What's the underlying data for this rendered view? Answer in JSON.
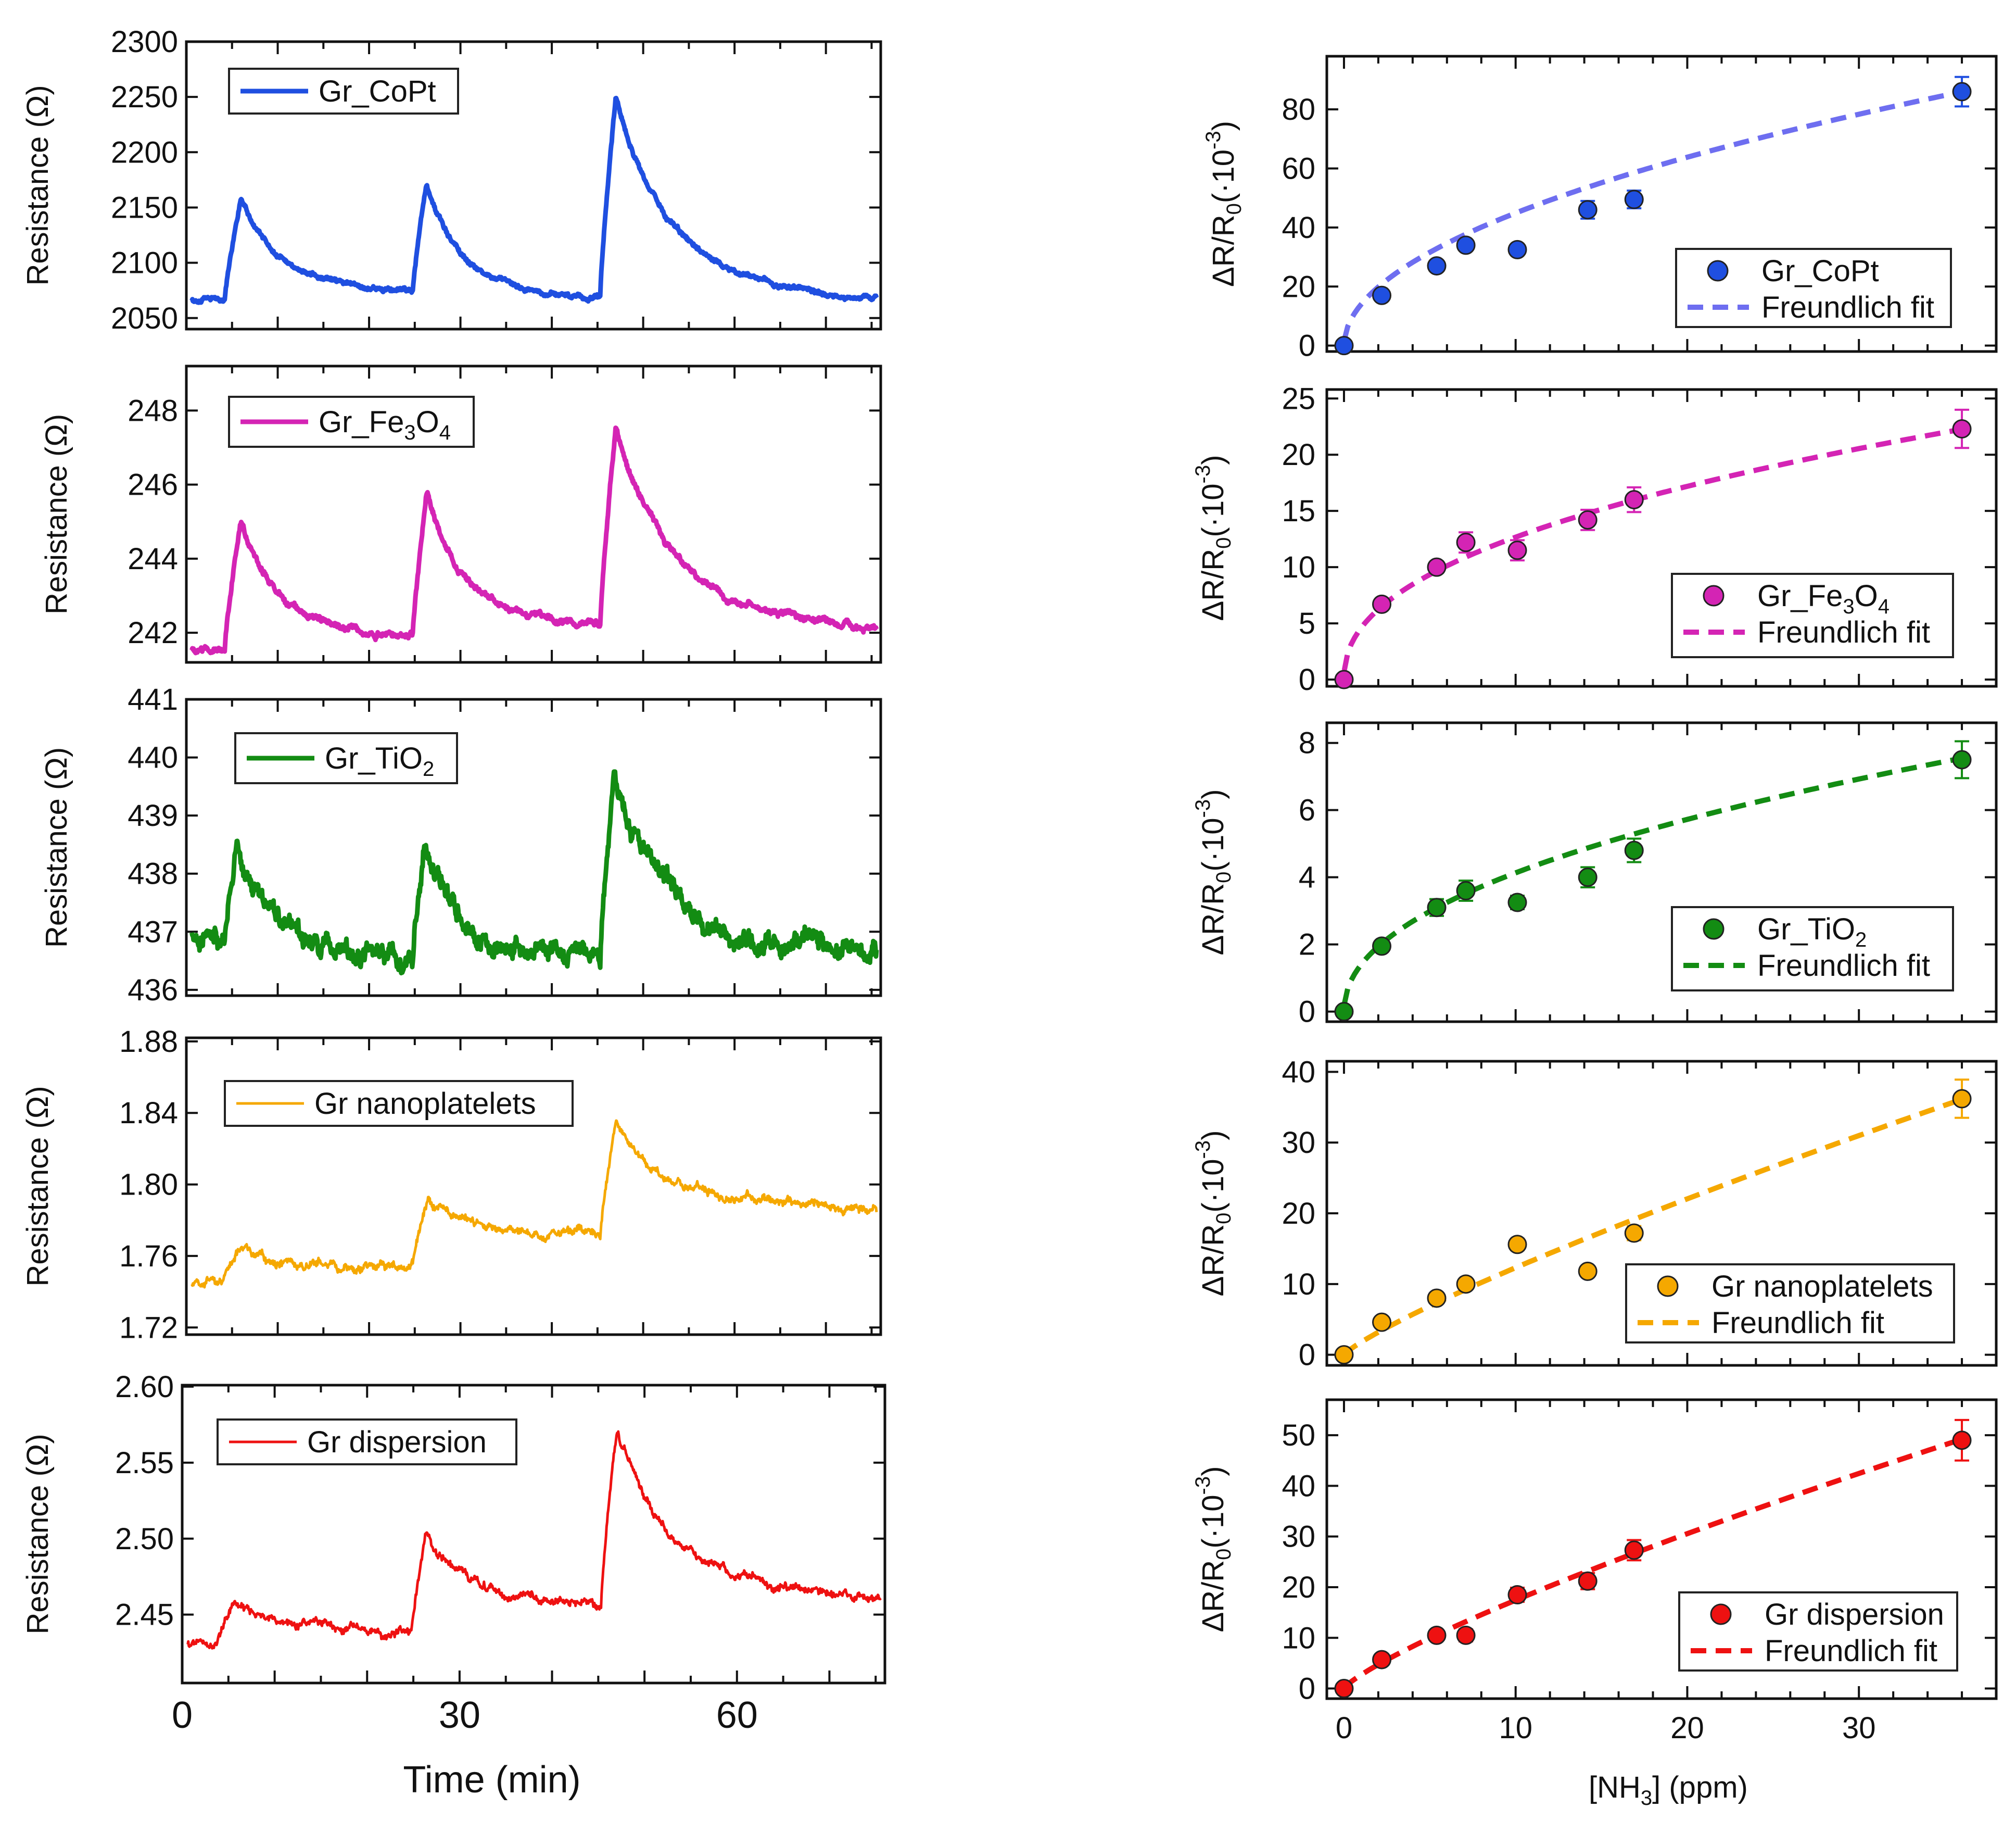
{
  "chart_data": [
    {
      "id": "left-copt",
      "type": "line",
      "label": "Gr_CoPt",
      "color": "#1f4fe0",
      "ylabel": "Resistance (Ω)",
      "xlim": [
        0,
        76
      ],
      "ylim": [
        2040,
        2300
      ],
      "yticks": [
        2050,
        2100,
        2150,
        2200,
        2250,
        2300
      ],
      "ytick_labels": [
        "2050",
        "2100",
        "2150",
        "2200",
        "2250",
        "2300"
      ],
      "baseline": 2067,
      "events": [
        {
          "start": 4.2,
          "peak_t": 6.0,
          "peak": 2160,
          "end_val": 2074,
          "next": 24.8
        },
        {
          "start": 24.8,
          "peak_t": 26.3,
          "peak": 2172,
          "end_val": 2066,
          "next": 45.3
        },
        {
          "start": 45.3,
          "peak_t": 47.0,
          "peak": 2250,
          "end_val": 2066,
          "next": 75.6
        }
      ],
      "noise": 1.5,
      "thick": true
    },
    {
      "id": "left-fe3o4",
      "type": "line",
      "label": "Gr_Fe3O4",
      "label_parts": [
        "Gr_Fe",
        "3",
        "O",
        "4"
      ],
      "color": "#d424b4",
      "ylabel": "Resistance (Ω)",
      "xlim": [
        0,
        76
      ],
      "ylim": [
        241.2,
        249.2
      ],
      "yticks": [
        242,
        244,
        246,
        248
      ],
      "ytick_labels": [
        "242",
        "244",
        "246",
        "248"
      ],
      "baseline": 241.6,
      "events": [
        {
          "start": 4.2,
          "peak_t": 6.0,
          "peak": 245.0,
          "end_val": 241.9,
          "next": 24.8
        },
        {
          "start": 24.8,
          "peak_t": 26.3,
          "peak": 245.8,
          "end_val": 242.2,
          "next": 45.3
        },
        {
          "start": 45.3,
          "peak_t": 47.0,
          "peak": 247.6,
          "end_val": 242.1,
          "next": 75.6
        }
      ],
      "noise": 0.06,
      "thick": true
    },
    {
      "id": "left-tio2",
      "type": "line",
      "label": "Gr_TiO2",
      "label_parts": [
        "Gr_TiO",
        "2"
      ],
      "color": "#138c13",
      "ylabel": "Resistance (Ω)",
      "xlim": [
        0,
        76
      ],
      "ylim": [
        435.9,
        441.0
      ],
      "yticks": [
        436,
        437,
        438,
        439,
        440,
        441
      ],
      "ytick_labels": [
        "436",
        "437",
        "438",
        "439",
        "440",
        "441"
      ],
      "baseline": 437.0,
      "events": [
        {
          "start": 4.2,
          "peak_t": 5.6,
          "peak": 438.4,
          "end_val": 436.5,
          "next": 24.8
        },
        {
          "start": 24.8,
          "peak_t": 26.0,
          "peak": 438.4,
          "end_val": 436.6,
          "next": 45.3
        },
        {
          "start": 45.3,
          "peak_t": 46.8,
          "peak": 439.7,
          "end_val": 436.6,
          "next": 75.6
        }
      ],
      "noise": 0.12,
      "thick": true
    },
    {
      "id": "left-nanoplatelets",
      "type": "line",
      "label": "Gr nanoplatelets",
      "color": "#f5a800",
      "ylabel": "Resistance (Ω)",
      "xlim": [
        0,
        76
      ],
      "ylim": [
        1.716,
        1.882
      ],
      "yticks": [
        1.72,
        1.76,
        1.8,
        1.84,
        1.88
      ],
      "ytick_labels": [
        "1.72",
        "1.76",
        "1.80",
        "1.84",
        "1.88"
      ],
      "baseline": 1.745,
      "events": [
        {
          "start": 4.2,
          "peak_t": 6.0,
          "peak": 1.764,
          "end_val": 1.754,
          "next": 24.8
        },
        {
          "start": 24.8,
          "peak_t": 26.5,
          "peak": 1.792,
          "end_val": 1.772,
          "next": 45.3
        },
        {
          "start": 45.3,
          "peak_t": 47.0,
          "peak": 1.833,
          "end_val": 1.786,
          "next": 75.6
        }
      ],
      "noise": 0.0018,
      "thick": false
    },
    {
      "id": "left-dispersion",
      "type": "line",
      "label": "Gr dispersion",
      "color": "#ee1111",
      "ylabel": "Resistance (Ω)",
      "xlim": [
        0,
        76
      ],
      "ylim": [
        2.405,
        2.601
      ],
      "yticks": [
        2.45,
        2.5,
        2.55,
        2.6
      ],
      "ytick_labels": [
        "2.45",
        "2.50",
        "2.55",
        "2.60"
      ],
      "baseline": 2.432,
      "events": [
        {
          "start": 3.8,
          "peak_t": 5.6,
          "peak": 2.457,
          "end_val": 2.44,
          "next": 24.8
        },
        {
          "start": 24.8,
          "peak_t": 26.4,
          "peak": 2.505,
          "end_val": 2.457,
          "next": 45.3
        },
        {
          "start": 45.3,
          "peak_t": 47.0,
          "peak": 2.571,
          "end_val": 2.461,
          "next": 75.6
        }
      ],
      "noise": 0.002,
      "thick": false,
      "xticks": [
        0,
        30,
        60
      ],
      "xtick_labels": [
        "0",
        "30",
        "60"
      ],
      "xlabel": "Time (min)"
    },
    {
      "id": "right-copt",
      "type": "scatter",
      "label": "Gr_CoPt",
      "color": "#1f4fe0",
      "fit_color": "#6e6ef0",
      "fit_label": "Freundlich fit",
      "ylabel": "ΔR/R0(·10-3)",
      "xlim": [
        -1,
        38
      ],
      "ylim": [
        -2,
        98
      ],
      "yticks": [
        0,
        20,
        40,
        60,
        80
      ],
      "ytick_labels": [
        "0",
        "20",
        "40",
        "60",
        "80"
      ],
      "x": [
        0,
        2.2,
        5.4,
        7.1,
        10.1,
        14.2,
        16.9,
        36.0
      ],
      "y": [
        0,
        17,
        27,
        34,
        32.5,
        46,
        49.5,
        86
      ],
      "err": [
        0,
        1,
        1.5,
        1.5,
        1.5,
        3,
        3,
        5
      ],
      "fit_k": 13.97,
      "fit_n": 0.507
    },
    {
      "id": "right-fe3o4",
      "type": "scatter",
      "label": "Gr_Fe3O4",
      "label_parts": [
        "Gr_Fe",
        "3",
        "O",
        "4"
      ],
      "color": "#d424b4",
      "fit_color": "#d424b4",
      "fit_label": "Freundlich fit",
      "ylabel": "ΔR/R0(·10-3)",
      "xlim": [
        -1,
        38
      ],
      "ylim": [
        -0.6,
        25.8
      ],
      "yticks": [
        0,
        5,
        10,
        15,
        20,
        25
      ],
      "ytick_labels": [
        "0",
        "5",
        "10",
        "15",
        "20",
        "25"
      ],
      "x": [
        0,
        2.2,
        5.4,
        7.1,
        10.1,
        14.2,
        16.9,
        36.0
      ],
      "y": [
        0,
        6.7,
        10,
        12.2,
        11.5,
        14.2,
        16,
        22.3
      ],
      "err": [
        0,
        0.4,
        0.5,
        0.9,
        0.9,
        0.9,
        1.1,
        1.7
      ],
      "fit_k": 4.6,
      "fit_n": 0.44
    },
    {
      "id": "right-tio2",
      "type": "scatter",
      "label": "Gr_TiO2",
      "label_parts": [
        "Gr_TiO",
        "2"
      ],
      "color": "#138c13",
      "fit_color": "#138c13",
      "fit_label": "Freundlich fit",
      "ylabel": "ΔR/R0(·10-3)",
      "xlim": [
        -1,
        38
      ],
      "ylim": [
        -0.3,
        8.6
      ],
      "yticks": [
        0,
        2,
        4,
        6,
        8
      ],
      "ytick_labels": [
        "0",
        "2",
        "4",
        "6",
        "8"
      ],
      "x": [
        0,
        2.2,
        5.4,
        7.1,
        10.1,
        14.2,
        16.9,
        36.0
      ],
      "y": [
        0,
        1.95,
        3.1,
        3.6,
        3.25,
        4.0,
        4.8,
        7.5
      ],
      "err": [
        0,
        0.1,
        0.25,
        0.3,
        0.2,
        0.3,
        0.35,
        0.55
      ],
      "fit_k": 1.4,
      "fit_n": 0.47
    },
    {
      "id": "right-nanoplatelets",
      "type": "scatter",
      "label": "Gr nanoplatelets",
      "color": "#f5a800",
      "fit_color": "#f5a800",
      "fit_label": "Freundlich fit",
      "ylabel": "ΔR/R0(·10-3)",
      "xlim": [
        -1,
        38
      ],
      "ylim": [
        -1.5,
        41.5
      ],
      "yticks": [
        0,
        10,
        20,
        30,
        40
      ],
      "ytick_labels": [
        "0",
        "10",
        "20",
        "30",
        "40"
      ],
      "x": [
        0,
        2.2,
        5.4,
        7.1,
        10.1,
        14.2,
        16.9,
        36.0
      ],
      "y": [
        0,
        4.6,
        8.0,
        10.0,
        15.6,
        11.8,
        17.2,
        36.2
      ],
      "err": [
        0,
        0.5,
        0.5,
        0.6,
        0.8,
        0.6,
        1.0,
        2.7
      ],
      "fit_k": 1.78,
      "fit_n": 0.84
    },
    {
      "id": "right-dispersion",
      "type": "scatter",
      "label": "Gr dispersion",
      "color": "#ee1111",
      "fit_color": "#ee1111",
      "fit_label": "Freundlich fit",
      "ylabel": "ΔR/R0(·10-3)",
      "xlim": [
        -1,
        38
      ],
      "ylim": [
        -2,
        57
      ],
      "yticks": [
        0,
        10,
        20,
        30,
        40,
        50
      ],
      "ytick_labels": [
        "0",
        "10",
        "20",
        "30",
        "40",
        "50"
      ],
      "x": [
        0,
        2.2,
        5.4,
        7.1,
        10.1,
        14.2,
        16.9,
        36.0
      ],
      "y": [
        0,
        5.7,
        10.5,
        10.5,
        18.5,
        21.2,
        27.3,
        49
      ],
      "err": [
        0,
        0.6,
        0.8,
        1.2,
        1.4,
        1.6,
        2.0,
        4.0
      ],
      "fit_k": 2.7,
      "fit_n": 0.81,
      "xticks": [
        0,
        10,
        20,
        30
      ],
      "xtick_labels": [
        "0",
        "10",
        "20",
        "30"
      ],
      "xlabel": "[NH3] (ppm)",
      "xlabel_parts": [
        "[NH",
        "3",
        "] (ppm)"
      ]
    }
  ]
}
